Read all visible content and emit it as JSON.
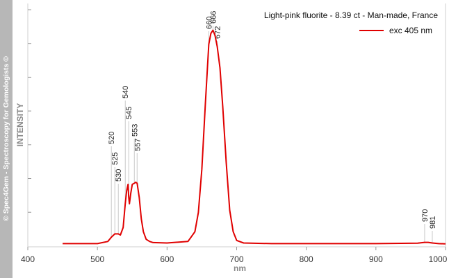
{
  "watermark": "© Spec4Gem - Spectroscopy for Gemologists ©",
  "chart_data": {
    "type": "line",
    "title": "Light-pink fluorite - 8.39 ct - Man-made, France",
    "xlabel": "nm",
    "ylabel": "INTENSITY",
    "xlim": [
      400,
      1000
    ],
    "ylim": [
      0,
      100
    ],
    "xticks": [
      400,
      500,
      600,
      700,
      800,
      900,
      1000
    ],
    "xtick_labels": [
      "400",
      "500",
      "600",
      "700",
      "800",
      "900",
      "1000"
    ],
    "ytick_labels_shown": false,
    "grid": false,
    "legend_position": "top-right",
    "series": [
      {
        "name": "exc 405 nm",
        "color": "#e00000",
        "x": [
          450,
          500,
          515,
          520,
          525,
          528,
          530,
          533,
          537,
          540,
          542,
          544,
          545,
          546,
          548,
          550,
          553,
          555,
          557,
          560,
          563,
          566,
          570,
          575,
          580,
          600,
          630,
          640,
          645,
          650,
          655,
          660,
          663,
          666,
          669,
          672,
          676,
          680,
          685,
          690,
          695,
          700,
          710,
          750,
          800,
          850,
          900,
          960,
          970,
          975,
          981,
          990,
          1000
        ],
        "y": [
          0.5,
          0.5,
          1.5,
          3.5,
          5,
          5,
          5,
          4.5,
          8,
          19,
          25,
          28,
          22,
          19,
          24,
          28,
          28.5,
          29,
          28.5,
          22,
          12,
          6,
          2.5,
          1.5,
          1,
          0.8,
          1.5,
          6,
          15,
          35,
          65,
          93,
          98,
          99.5,
          97,
          92,
          82,
          64,
          38,
          16,
          6,
          2,
          0.8,
          0.5,
          0.5,
          0.5,
          0.5,
          0.7,
          1.1,
          1.1,
          0.8,
          0.5,
          0.4
        ]
      }
    ],
    "peak_labels": [
      "520",
      "525",
      "530",
      "540",
      "545",
      "553",
      "557",
      "660",
      "666",
      "672",
      "970",
      "981"
    ],
    "peak_positions": [
      520,
      525,
      530,
      540,
      545,
      553,
      557,
      660,
      666,
      672,
      970,
      981
    ]
  }
}
